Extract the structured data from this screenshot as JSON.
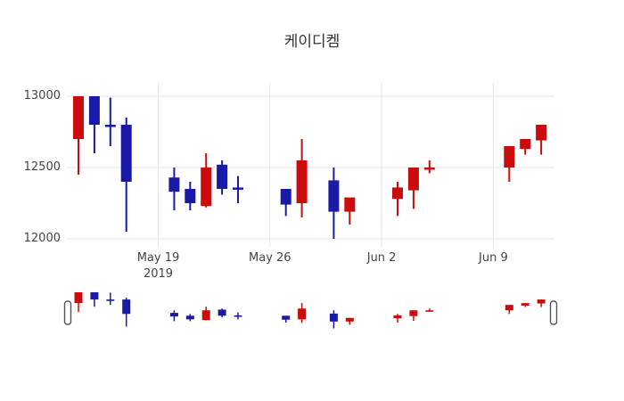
{
  "title": "케이디켐",
  "colors": {
    "up": "#cc0c0c",
    "down": "#1a1aa8",
    "grid": "#e6e6e6",
    "tick_text": "#444444",
    "title_text": "#333333",
    "background": "#ffffff",
    "handle_fill": "#ffffff",
    "handle_border": "#555555"
  },
  "y_axis": {
    "ticks": [
      {
        "label": "13000",
        "value": 13000
      },
      {
        "label": "12500",
        "value": 12500
      },
      {
        "label": "12000",
        "value": 12000
      }
    ]
  },
  "x_axis": {
    "ticks": [
      {
        "label": "May 19",
        "sublabel": "2019",
        "date": "2019-05-19"
      },
      {
        "label": "May 26",
        "sublabel": "",
        "date": "2019-05-26"
      },
      {
        "label": "Jun 2",
        "sublabel": "",
        "date": "2019-06-02"
      },
      {
        "label": "Jun 9",
        "sublabel": "",
        "date": "2019-06-09"
      }
    ]
  },
  "rangeslider": {
    "visible": true,
    "left_handle": "rangeslider-left-handle",
    "right_handle": "rangeslider-right-handle"
  },
  "chart_data": {
    "type": "candlestick",
    "title": "케이디켐",
    "ylabel": "",
    "xlabel": "",
    "ylim": [
      11945,
      13095
    ],
    "grid": true,
    "legend": false,
    "increasing_color": "#cc0c0c",
    "decreasing_color": "#1a1aa8",
    "x": [
      "2019-05-14",
      "2019-05-15",
      "2019-05-16",
      "2019-05-17",
      "2019-05-20",
      "2019-05-21",
      "2019-05-22",
      "2019-05-23",
      "2019-05-24",
      "2019-05-27",
      "2019-05-28",
      "2019-05-30",
      "2019-05-31",
      "2019-06-03",
      "2019-06-04",
      "2019-06-05",
      "2019-06-10",
      "2019-06-11",
      "2019-06-12"
    ],
    "open": [
      12700,
      13000,
      12800,
      12800,
      12430,
      12350,
      12230,
      12520,
      12360,
      12350,
      12250,
      12410,
      12190,
      12280,
      12340,
      12490,
      12500,
      12630,
      12690
    ],
    "high": [
      13000,
      13000,
      12990,
      12850,
      12500,
      12400,
      12600,
      12550,
      12440,
      12350,
      12700,
      12500,
      12290,
      12400,
      12500,
      12550,
      12650,
      12700,
      12800
    ],
    "low": [
      12450,
      12600,
      12650,
      12050,
      12200,
      12200,
      12220,
      12310,
      12250,
      12160,
      12150,
      12000,
      12100,
      12160,
      12210,
      12460,
      12400,
      12590,
      12590
    ],
    "close": [
      13000,
      12800,
      12790,
      12400,
      12330,
      12250,
      12500,
      12350,
      12350,
      12240,
      12550,
      12190,
      12290,
      12360,
      12500,
      12500,
      12650,
      12700,
      12800
    ]
  }
}
